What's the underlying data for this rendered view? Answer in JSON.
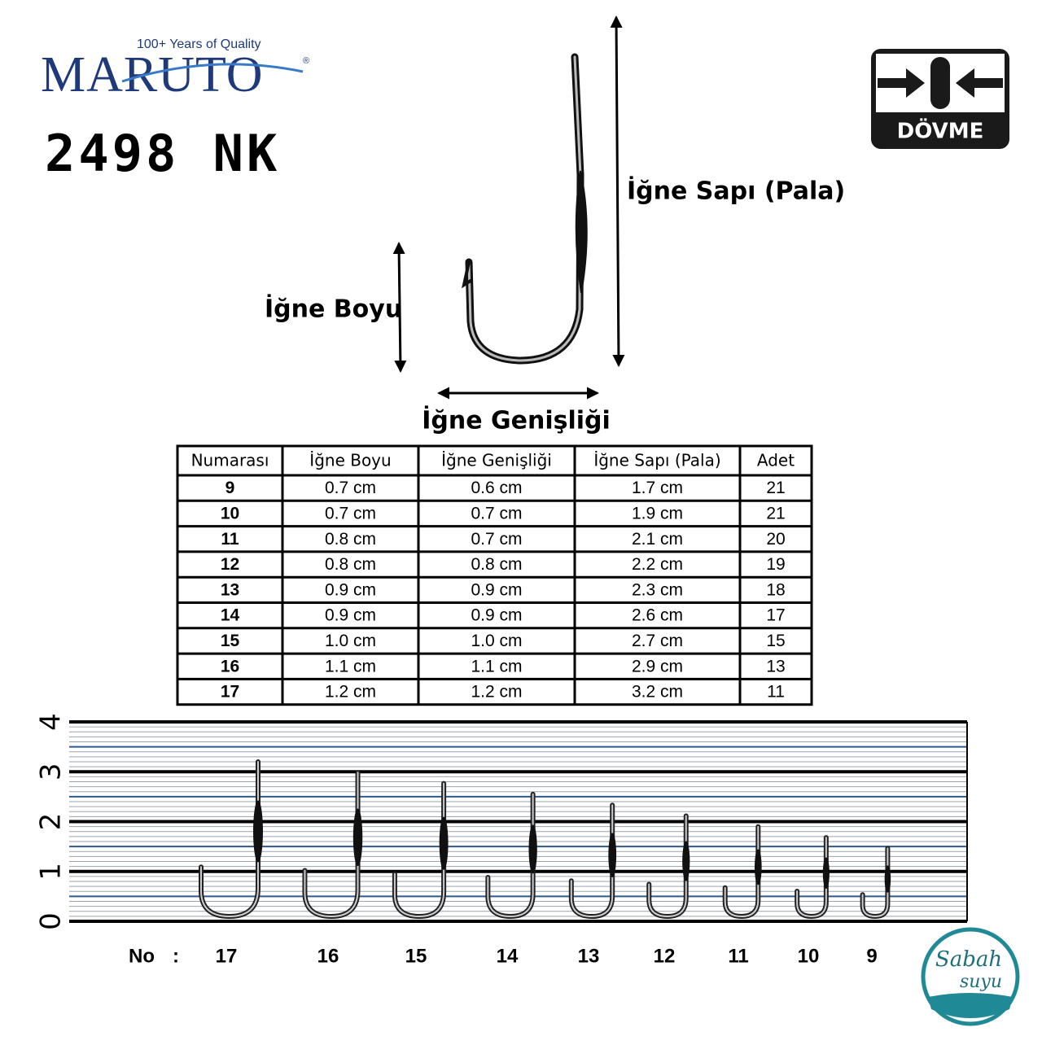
{
  "brand": {
    "tagline": "100+ Years of Quality",
    "name": "MARUTO",
    "registered": "®"
  },
  "model": "2498 NK",
  "badge": "DÖVME",
  "diagram": {
    "shank_label": "İğne Sapı (Pala)",
    "length_label": "İğne Boyu",
    "width_label": "İğne Genişliği"
  },
  "table": {
    "headers": [
      "Numarası",
      "İğne Boyu",
      "İğne Genişliği",
      "İğne Sapı (Pala)",
      "Adet"
    ],
    "rows": [
      [
        "9",
        "0.7 cm",
        "0.6 cm",
        "1.7 cm",
        "21"
      ],
      [
        "10",
        "0.7 cm",
        "0.7 cm",
        "1.9 cm",
        "21"
      ],
      [
        "11",
        "0.8 cm",
        "0.7 cm",
        "2.1 cm",
        "20"
      ],
      [
        "12",
        "0.8 cm",
        "0.8 cm",
        "2.2 cm",
        "19"
      ],
      [
        "13",
        "0.9 cm",
        "0.9 cm",
        "2.3 cm",
        "18"
      ],
      [
        "14",
        "0.9 cm",
        "0.9 cm",
        "2.6 cm",
        "17"
      ],
      [
        "15",
        "1.0 cm",
        "1.0 cm",
        "2.7 cm",
        "15"
      ],
      [
        "16",
        "1.1 cm",
        "1.1 cm",
        "2.9 cm",
        "13"
      ],
      [
        "17",
        "1.2 cm",
        "1.2 cm",
        "3.2 cm",
        "11"
      ]
    ]
  },
  "ruler": {
    "ticks": [
      0,
      1,
      2,
      3,
      4
    ],
    "no_label": "No",
    "separator": ":",
    "sizes": [
      "17",
      "16",
      "15",
      "14",
      "13",
      "12",
      "11",
      "10",
      "9"
    ]
  },
  "watermark": {
    "line1": "Sabah",
    "line2": "suyu"
  }
}
